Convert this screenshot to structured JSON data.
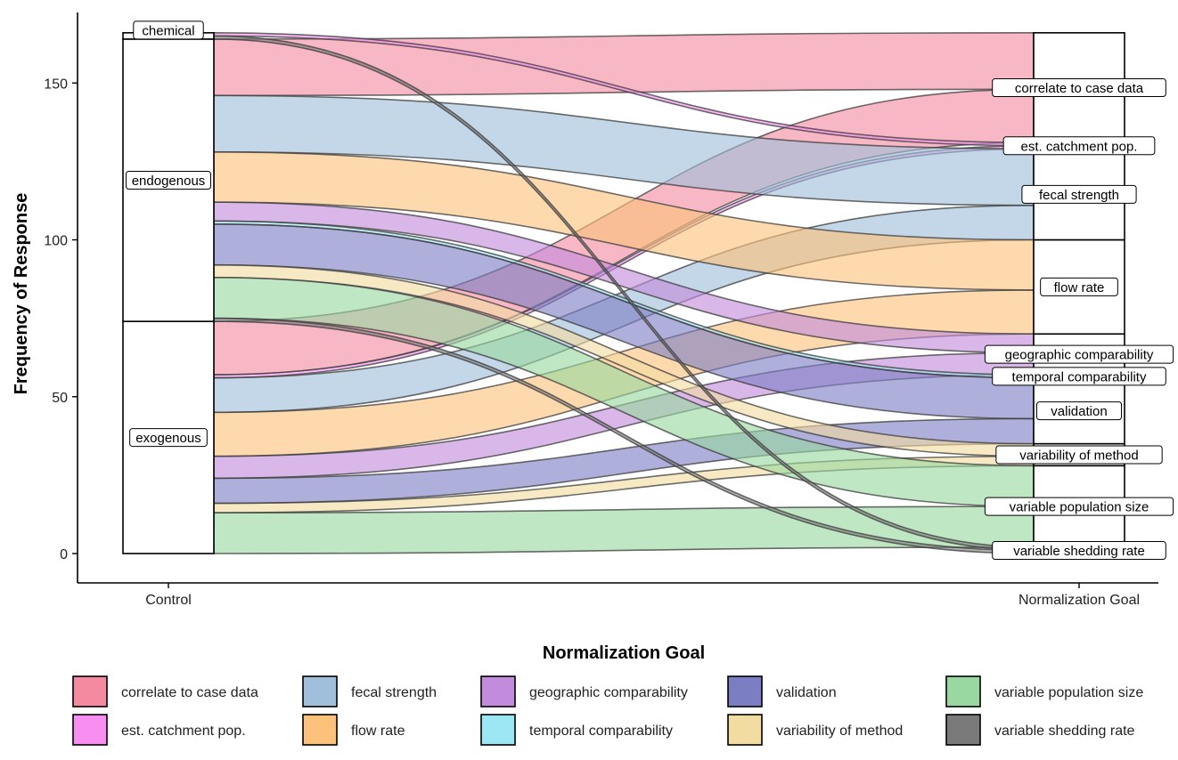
{
  "chart_data": {
    "type": "alluvial",
    "title": "",
    "xlabel": "",
    "ylabel": "Frequency of Response",
    "ylim": [
      -8,
      175
    ],
    "y_ticks": [
      0,
      50,
      100,
      150
    ],
    "x_axes": [
      "Control",
      "Normalization Goal"
    ],
    "legend_title": "Normalization Goal",
    "legend_position": "bottom",
    "left_strata": [
      "exogenous",
      "endogenous",
      "chemical"
    ],
    "right_strata": [
      "variable shedding rate",
      "variable population size",
      "variability of method",
      "validation",
      "temporal comparability",
      "geographic comparability",
      "flow rate",
      "fecal strength",
      "est. catchment pop.",
      "correlate to case data"
    ],
    "right_label_order": [
      "correlate to case data",
      "est. catchment pop.",
      "fecal strength",
      "flow rate",
      "geographic comparability",
      "temporal comparability",
      "validation",
      "variability of method",
      "variable population size",
      "variable shedding rate"
    ],
    "goals": [
      {
        "name": "correlate to case data",
        "color": "#f38aa0"
      },
      {
        "name": "est. catchment pop.",
        "color": "#f88ef0"
      },
      {
        "name": "fecal strength",
        "color": "#9fbfda"
      },
      {
        "name": "flow rate",
        "color": "#fcc17b"
      },
      {
        "name": "geographic comparability",
        "color": "#c28bdc"
      },
      {
        "name": "temporal comparability",
        "color": "#9de7f4"
      },
      {
        "name": "validation",
        "color": "#7c7ec3"
      },
      {
        "name": "variability of method",
        "color": "#f3dca1"
      },
      {
        "name": "variable population size",
        "color": "#99d8a0"
      },
      {
        "name": "variable shedding rate",
        "color": "#7a7a7a"
      }
    ],
    "flows": [
      {
        "control": "exogenous",
        "goal": "correlate to case data",
        "value": 17
      },
      {
        "control": "exogenous",
        "goal": "est. catchment pop.",
        "value": 1
      },
      {
        "control": "exogenous",
        "goal": "fecal strength",
        "value": 11
      },
      {
        "control": "exogenous",
        "goal": "flow rate",
        "value": 14
      },
      {
        "control": "exogenous",
        "goal": "geographic comparability",
        "value": 7
      },
      {
        "control": "exogenous",
        "goal": "validation",
        "value": 8
      },
      {
        "control": "exogenous",
        "goal": "variability of method",
        "value": 3
      },
      {
        "control": "exogenous",
        "goal": "variable population size",
        "value": 13
      },
      {
        "control": "endogenous",
        "goal": "correlate to case data",
        "value": 18
      },
      {
        "control": "endogenous",
        "goal": "fecal strength",
        "value": 18
      },
      {
        "control": "endogenous",
        "goal": "flow rate",
        "value": 16
      },
      {
        "control": "endogenous",
        "goal": "geographic comparability",
        "value": 6
      },
      {
        "control": "endogenous",
        "goal": "temporal comparability",
        "value": 1
      },
      {
        "control": "endogenous",
        "goal": "validation",
        "value": 13
      },
      {
        "control": "endogenous",
        "goal": "variability of method",
        "value": 4
      },
      {
        "control": "endogenous",
        "goal": "variable population size",
        "value": 13
      },
      {
        "control": "endogenous",
        "goal": "variable shedding rate",
        "value": 1
      },
      {
        "control": "chemical",
        "goal": "est. catchment pop.",
        "value": 1
      },
      {
        "control": "chemical",
        "goal": "variable shedding rate",
        "value": 1
      }
    ]
  }
}
